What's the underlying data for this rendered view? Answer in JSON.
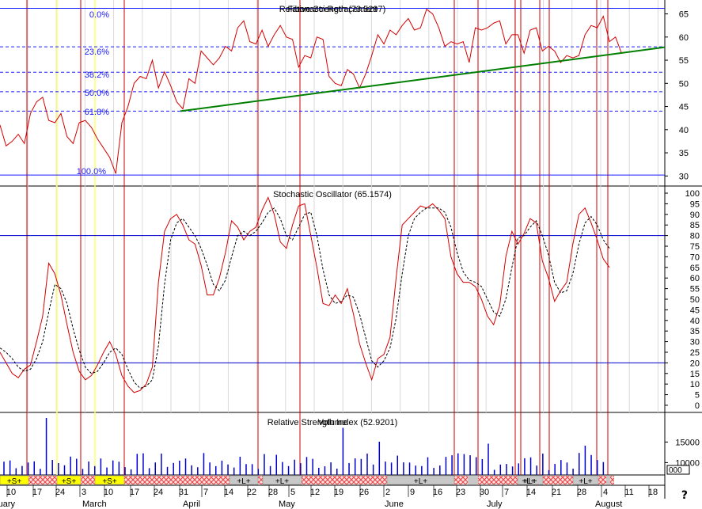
{
  "chart_data": [
    {
      "type": "line",
      "title": "Relative Strength (73.5297)",
      "title_overlap": "Fibonacci Retracement",
      "y_ticks": [
        30,
        35,
        40,
        45,
        50,
        55,
        60,
        65
      ],
      "ylim": [
        28,
        68
      ],
      "fib_levels": [
        {
          "label": "0.0%",
          "value": 66.2
        },
        {
          "label": "23.6%",
          "value": 57.9
        },
        {
          "label": "38.2%",
          "value": 52.4
        },
        {
          "label": "50.0%",
          "value": 48.2
        },
        {
          "label": "61.8%",
          "value": 44.0
        },
        {
          "label": "100.0%",
          "value": 30.2
        }
      ],
      "trendline": {
        "x": [
          31,
          160
        ],
        "y": [
          44.0,
          57.8
        ]
      },
      "series": [
        {
          "values": [
            41,
            36.5,
            37.5,
            39,
            37,
            43.5,
            46,
            47,
            42,
            41.5,
            43.5,
            38.5,
            37,
            41.5,
            42,
            40.5,
            38,
            36,
            34,
            30.5,
            41.5,
            45,
            50,
            51.5,
            51,
            55,
            49,
            52.5,
            49.5,
            46,
            44.5,
            51,
            50,
            57,
            55.5,
            54,
            55.5,
            58,
            57,
            62,
            63.5,
            59,
            58.5,
            61.5,
            58,
            60.5,
            62.5,
            60,
            59.5,
            53.5,
            56,
            55.5,
            60,
            59.5,
            51.5,
            50,
            49.5,
            53,
            52,
            49,
            52,
            56,
            60.5,
            58.5,
            61.5,
            60.5,
            62.5,
            64,
            61.5,
            62,
            66,
            65,
            62,
            58,
            59,
            58.5,
            59,
            54.5,
            62,
            61.5,
            62,
            63,
            63.5,
            58.5,
            60.5,
            60.5,
            56.5,
            61.5,
            62,
            57,
            58,
            57,
            54.5,
            56,
            55.5,
            56,
            60.5,
            62.5,
            62,
            64.5,
            59,
            60,
            56.5
          ]
        }
      ]
    },
    {
      "type": "line",
      "title": "Stochastic Oscillator (65.1574)",
      "y_ticks": [
        0,
        5,
        10,
        15,
        20,
        25,
        30,
        35,
        40,
        45,
        50,
        55,
        60,
        65,
        70,
        75,
        80,
        85,
        90,
        95,
        100
      ],
      "ylim": [
        -3,
        103
      ],
      "h_lines": [
        20,
        80
      ],
      "series": [
        {
          "style": "solid",
          "color": "#d40000",
          "values": [
            25,
            20,
            15,
            13,
            17,
            19,
            30,
            42,
            67,
            62,
            52,
            38,
            25,
            16,
            12,
            14,
            19,
            25,
            30,
            24,
            14,
            9,
            6,
            7,
            10,
            18,
            58,
            82,
            88,
            90,
            85,
            78,
            76,
            66,
            52,
            52,
            60,
            72,
            87,
            84,
            78,
            82,
            84,
            92,
            98,
            90,
            77,
            74,
            85,
            94,
            95,
            80,
            65,
            48,
            47,
            52,
            48,
            55,
            43,
            29,
            20,
            12,
            22,
            24,
            32,
            60,
            85,
            88,
            91,
            94,
            93,
            95,
            92,
            88,
            70,
            62,
            58,
            58,
            56,
            50,
            42,
            38,
            47,
            70,
            82,
            76,
            81,
            88,
            86,
            68,
            60,
            49,
            54,
            58,
            76,
            90,
            93,
            86,
            78,
            69,
            65
          ]
        },
        {
          "style": "dashed",
          "color": "#000000",
          "values": [
            27,
            25,
            22,
            18,
            16,
            17,
            22,
            30,
            44,
            57,
            55,
            48,
            36,
            26,
            18,
            15,
            16,
            20,
            25,
            27,
            24,
            17,
            11,
            8,
            9,
            12,
            28,
            57,
            78,
            86,
            88,
            84,
            80,
            74,
            66,
            57,
            54,
            59,
            70,
            80,
            82,
            80,
            82,
            86,
            91,
            93,
            88,
            80,
            78,
            84,
            90,
            91,
            80,
            64,
            52,
            48,
            49,
            52,
            51,
            43,
            32,
            21,
            18,
            21,
            27,
            41,
            62,
            80,
            88,
            91,
            93,
            93,
            93,
            91,
            84,
            72,
            63,
            59,
            58,
            56,
            50,
            44,
            42,
            50,
            65,
            79,
            80,
            84,
            87,
            80,
            71,
            58,
            53,
            54,
            62,
            76,
            86,
            89,
            85,
            78,
            74
          ]
        }
      ]
    },
    {
      "type": "bar",
      "title": "Relative Strength Index (52.9201)",
      "title_overlap": "Volume",
      "y_ticks": [
        10000,
        15000
      ],
      "ylim": [
        7000,
        22000
      ]
    }
  ],
  "x_axis": {
    "day_ticks": [
      "10",
      "17",
      "24",
      "3",
      "10",
      "17",
      "24",
      "31",
      "7",
      "14",
      "22",
      "28",
      "5",
      "12",
      "19",
      "26",
      "2",
      "9",
      "16",
      "23",
      "30",
      "7",
      "14",
      "21",
      "28",
      "4",
      "11",
      "18"
    ],
    "months": [
      "ruary",
      "March",
      "April",
      "May",
      "June",
      "July",
      "August"
    ]
  },
  "signals": [
    {
      "label": "+S+"
    },
    {
      "label": "+S+"
    },
    {
      "label": "+S+"
    },
    {
      "label": "+L+"
    },
    {
      "label": "+L+"
    },
    {
      "label": "+L+"
    },
    {
      "label": "+L+"
    },
    {
      "label": "+L+"
    },
    {
      "label": "+L+"
    }
  ],
  "corner_value": "000",
  "help_symbol": "?",
  "colors": {
    "grid": "#0000cc",
    "price": "#d40000",
    "trend": "#008000",
    "signal_s": "#ffff00",
    "signal_l": "#c8c8c8",
    "hatch": "#e84040",
    "vline": "#cc0000",
    "yellow_line": "#ffff66",
    "fib": "#1a1aff"
  }
}
